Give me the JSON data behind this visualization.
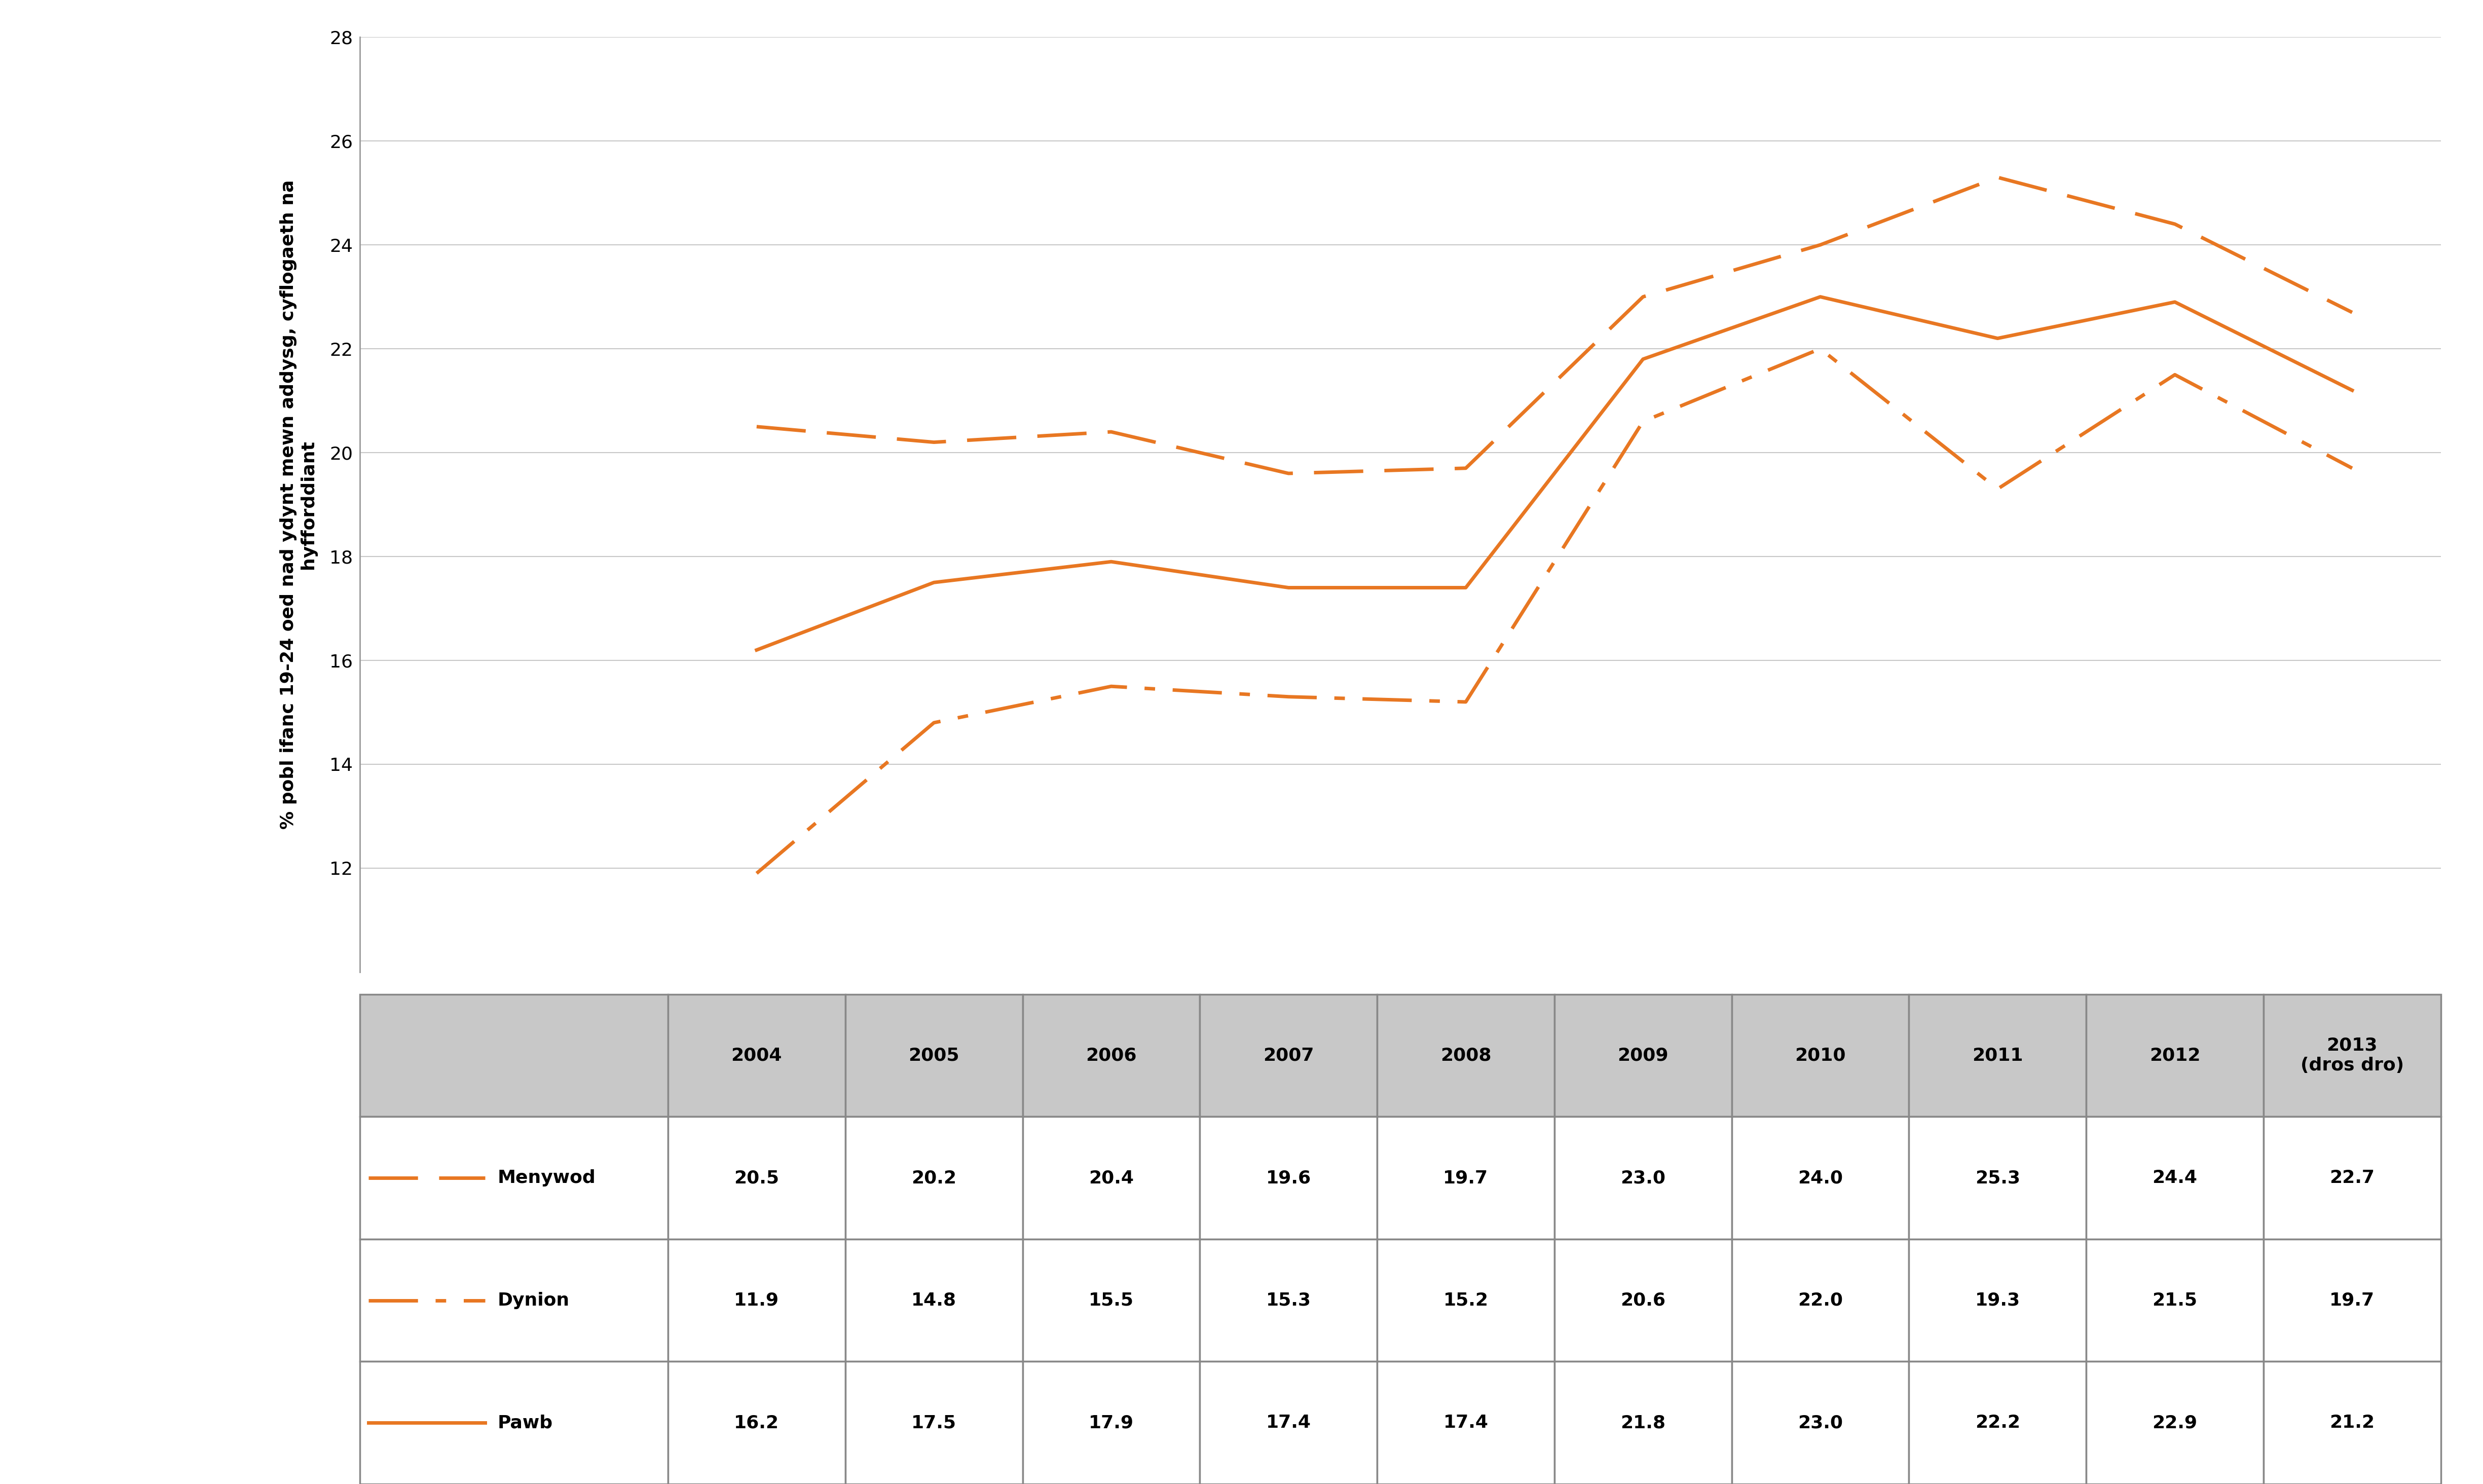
{
  "years": [
    2004,
    2005,
    2006,
    2007,
    2008,
    2009,
    2010,
    2011,
    2012,
    2013
  ],
  "menywod": [
    20.5,
    20.2,
    20.4,
    19.6,
    19.7,
    23.0,
    24.0,
    25.3,
    24.4,
    22.7
  ],
  "dynion": [
    11.9,
    14.8,
    15.5,
    15.3,
    15.2,
    20.6,
    22.0,
    19.3,
    21.5,
    19.7
  ],
  "pawb": [
    16.2,
    17.5,
    17.9,
    17.4,
    17.4,
    21.8,
    23.0,
    22.2,
    22.9,
    21.2
  ],
  "line_color": "#E87722",
  "ylim_min": 10,
  "ylim_max": 28,
  "yticks": [
    12,
    14,
    16,
    18,
    20,
    22,
    24,
    26,
    28
  ],
  "year_labels_chart": [
    "2004",
    "2005",
    "2006",
    "2007",
    "2008",
    "2009",
    "2010",
    "2011",
    "2012",
    "2013\n(dros dro)"
  ],
  "table_row_labels": [
    "Menywod",
    "Dynion",
    "Pawb"
  ],
  "table_data": [
    [
      20.5,
      20.2,
      20.4,
      19.6,
      19.7,
      23.0,
      24.0,
      25.3,
      24.4,
      22.7
    ],
    [
      11.9,
      14.8,
      15.5,
      15.3,
      15.2,
      20.6,
      22.0,
      19.3,
      21.5,
      19.7
    ],
    [
      16.2,
      17.5,
      17.9,
      17.4,
      17.4,
      21.8,
      23.0,
      22.2,
      22.9,
      21.2
    ]
  ],
  "background_color": "#ffffff",
  "grid_color": "#c8c8c8",
  "axis_color": "#999999",
  "table_header_bg": "#c8c8c8",
  "table_row_bg": "#ffffff",
  "table_border_color": "#888888",
  "tick_fontsize": 26,
  "ylabel_fontsize": 26,
  "table_fontsize": 26,
  "swatch_fontsize": 26
}
